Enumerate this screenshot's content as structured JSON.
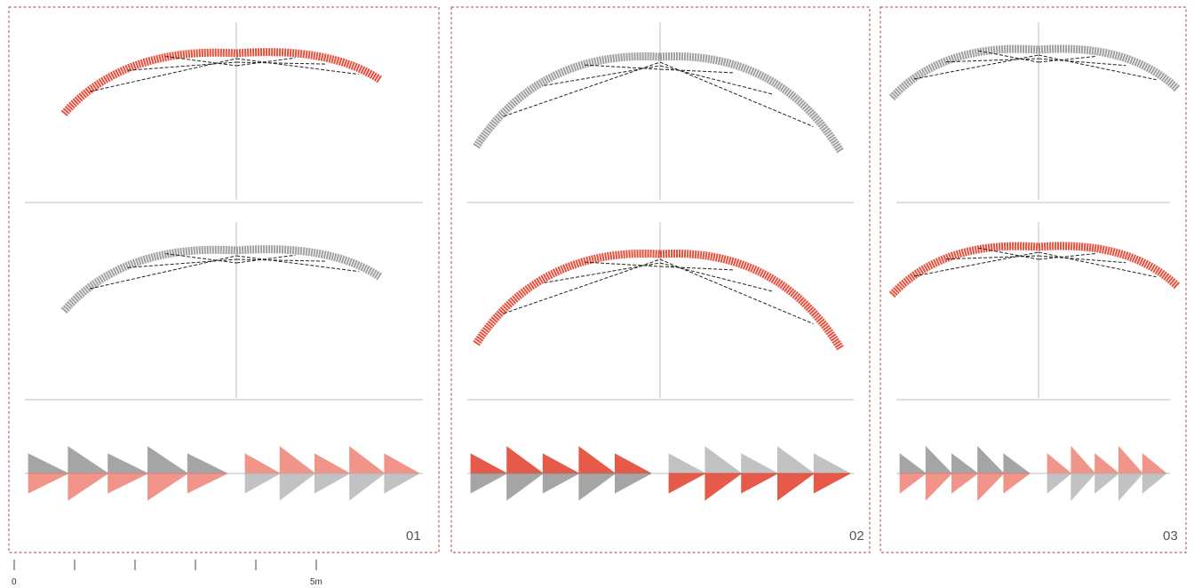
{
  "colors": {
    "accent_red": "#e0321c",
    "light_red": "#ee7a6c",
    "grey": "#8f8f8f",
    "light_grey": "#b4b4b4",
    "frame": "#b86a66",
    "axis": "#bfbfbf"
  },
  "panels": [
    {
      "label": "01",
      "highlight_row": "top",
      "profile": "shallow"
    },
    {
      "label": "02",
      "highlight_row": "middle",
      "profile": "deep"
    },
    {
      "label": "03",
      "highlight_row": "middle",
      "profile": "flat"
    }
  ],
  "scale_bar": {
    "start_label": "0",
    "end_label": "5m",
    "ticks": 6
  }
}
